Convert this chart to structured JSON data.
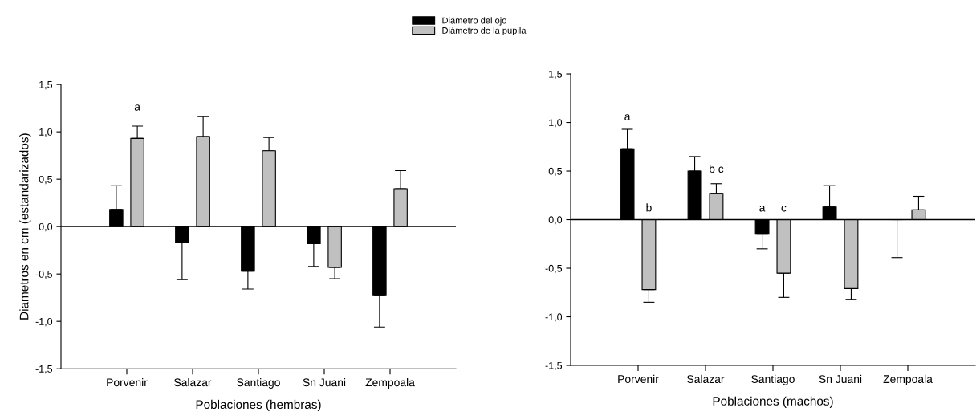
{
  "chart_data": [
    {
      "type": "bar",
      "xlabel": "Poblaciones (hembras)",
      "ylabel": "Diametros en cm (estandarizados)",
      "categories": [
        "Porvenir",
        "Salazar",
        "Santiago",
        "Sn Juani",
        "Zempoala"
      ],
      "series": [
        {
          "color": "#000000",
          "values": [
            0.18,
            -0.17,
            -0.47,
            -0.18,
            -0.72
          ],
          "errors": [
            [
              0.18,
              0.43
            ],
            [
              -0.56,
              -0.17
            ],
            [
              -0.66,
              -0.47
            ],
            [
              -0.42,
              -0.18
            ],
            [
              -1.06,
              -0.72
            ]
          ]
        },
        {
          "color": "#c0c0c0",
          "values": [
            0.93,
            0.95,
            0.8,
            -0.43,
            0.4
          ],
          "errors": [
            [
              0.93,
              1.06
            ],
            [
              0.95,
              1.16
            ],
            [
              0.8,
              0.94
            ],
            [
              -0.55,
              -0.43
            ],
            [
              0.4,
              0.59
            ]
          ]
        }
      ],
      "ylim": [
        -1.5,
        1.5
      ],
      "yticks": [
        {
          "value": -1.5,
          "label": "-1,5"
        },
        {
          "value": -1.0,
          "label": "-1,0"
        },
        {
          "value": -0.5,
          "label": "-0,5"
        },
        {
          "value": 0.0,
          "label": "0,0"
        },
        {
          "value": 0.5,
          "label": "0,5"
        },
        {
          "value": 1.0,
          "label": "1,0"
        },
        {
          "value": 1.5,
          "label": "1,5"
        }
      ],
      "ref_lines": [
        {
          "axis": "y",
          "value": 0,
          "color": "#000000"
        }
      ],
      "annotations": [
        "a"
      ],
      "grid": false
    },
    {
      "type": "bar",
      "xlabel": "Poblaciones (machos)",
      "categories": [
        "Porvenir",
        "Salazar",
        "Santiago",
        "Sn Juani",
        "Zempoala"
      ],
      "series": [
        {
          "name": "Diámetro del ojo",
          "color": "#000000",
          "values": [
            0.73,
            0.5,
            -0.15,
            0.13,
            0.0
          ],
          "errors": [
            [
              0.73,
              0.93
            ],
            [
              0.5,
              0.65
            ],
            [
              -0.3,
              -0.15
            ],
            [
              0.13,
              0.35
            ],
            [
              -0.39,
              0.0
            ]
          ]
        },
        {
          "name": "Diámetro de la pupila",
          "color": "#c0c0c0",
          "values": [
            -0.72,
            0.27,
            -0.55,
            -0.71,
            0.1
          ],
          "errors": [
            [
              -0.85,
              -0.72
            ],
            [
              0.27,
              0.37
            ],
            [
              -0.8,
              -0.55
            ],
            [
              -0.82,
              -0.71
            ],
            [
              0.1,
              0.24
            ]
          ]
        }
      ],
      "ylim": [
        -1.5,
        1.5
      ],
      "yticks": [
        {
          "value": -1.5,
          "label": "-1,5"
        },
        {
          "value": -1.0,
          "label": "-1,0"
        },
        {
          "value": -0.5,
          "label": "-0,5"
        },
        {
          "value": 0.0,
          "label": "0,0"
        },
        {
          "value": 0.5,
          "label": "0,5"
        },
        {
          "value": 1.0,
          "label": "1,0"
        },
        {
          "value": 1.5,
          "label": "1,5"
        }
      ],
      "ref_lines": [
        {
          "axis": "y",
          "value": 0,
          "color": "#000000"
        }
      ],
      "annotations": [
        "a",
        "b",
        "b c",
        "a",
        "c"
      ],
      "grid": false,
      "legend": "top"
    }
  ]
}
